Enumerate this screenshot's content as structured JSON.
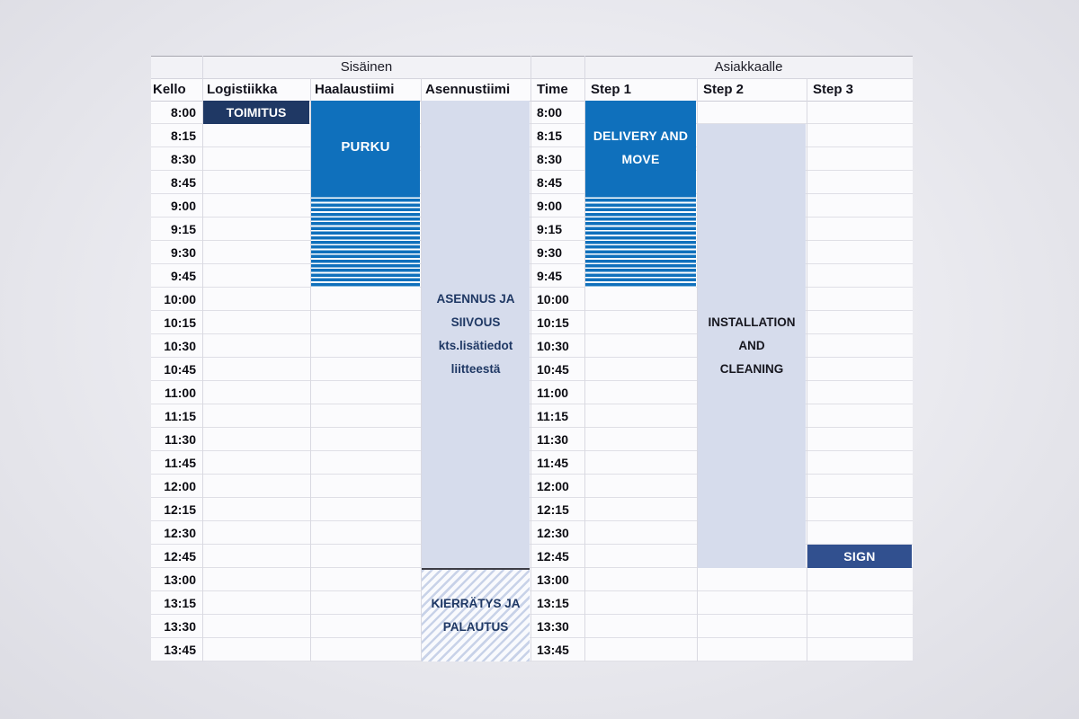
{
  "schedule": {
    "group_headers": [
      {
        "label": "Sisäinen"
      },
      {
        "label": "Asiakkaalle"
      }
    ],
    "columns": [
      {
        "key": "kello",
        "label": "Kello"
      },
      {
        "key": "logistiikka",
        "label": "Logistiikka"
      },
      {
        "key": "haalaustiimi",
        "label": "Haalaustiimi"
      },
      {
        "key": "asennustiimi",
        "label": "Asennustiimi"
      },
      {
        "key": "time",
        "label": "Time"
      },
      {
        "key": "step1",
        "label": "Step 1"
      },
      {
        "key": "step2",
        "label": "Step 2"
      },
      {
        "key": "step3",
        "label": "Step 3"
      }
    ],
    "times": [
      "8:00",
      "8:15",
      "8:30",
      "8:45",
      "9:00",
      "9:15",
      "9:30",
      "9:45",
      "10:00",
      "10:15",
      "10:30",
      "10:45",
      "11:00",
      "11:15",
      "11:30",
      "11:45",
      "12:00",
      "12:15",
      "12:30",
      "12:45",
      "13:00",
      "13:15",
      "13:30",
      "13:45"
    ],
    "events": [
      {
        "name": "toimitus",
        "column": "logistiikka",
        "start": "8:00",
        "end": "8:00",
        "style": "navy",
        "lines": [
          "TOIMITUS"
        ]
      },
      {
        "name": "purku",
        "column": "haalaustiimi",
        "start": "8:00",
        "end": "8:45",
        "style": "blue",
        "lines": [
          "PURKU"
        ]
      },
      {
        "name": "purku-overflow-stripes",
        "column": "haalaustiimi",
        "start": "9:00",
        "end": "9:45",
        "style": "striped",
        "lines": []
      },
      {
        "name": "asennus-ja-siivous",
        "column": "asennustiimi",
        "start": "8:00",
        "end": "12:45",
        "style": "lavender",
        "lines": [
          "ASENNUS JA",
          "SIIVOUS",
          "kts.lisätiedot",
          "liitteestä"
        ]
      },
      {
        "name": "kierratys-ja-palautus",
        "column": "asennustiimi",
        "start": "13:00",
        "end": "13:45",
        "style": "diag",
        "lines": [
          "KIERRÄTYS JA",
          "PALAUTUS"
        ]
      },
      {
        "name": "delivery-and-move",
        "column": "step1",
        "start": "8:00",
        "end": "8:45",
        "style": "blue2",
        "lines": [
          "DELIVERY AND",
          "MOVE"
        ]
      },
      {
        "name": "delivery-overflow-stripes",
        "column": "step1",
        "start": "9:00",
        "end": "9:45",
        "style": "striped",
        "lines": []
      },
      {
        "name": "installation-and-cleaning",
        "column": "step2",
        "start": "8:15",
        "end": "12:45",
        "style": "lavender-dark",
        "lines": [
          "INSTALLATION",
          "AND",
          "CLEANING"
        ]
      },
      {
        "name": "sign",
        "column": "step3",
        "start": "12:45",
        "end": "12:45",
        "style": "steel",
        "lines": [
          "SIGN"
        ]
      }
    ]
  },
  "colors": {
    "event_blue": "#0F70BC",
    "event_dark_navy": "#1F3864",
    "event_steel_blue": "#31508F",
    "event_lavender": "#D6DCEC",
    "diagonal_stripe": "#C8D2E8",
    "navy_text": "#1F3864",
    "dark_text": "#17171F",
    "separator_dark": "#3C3C45"
  }
}
